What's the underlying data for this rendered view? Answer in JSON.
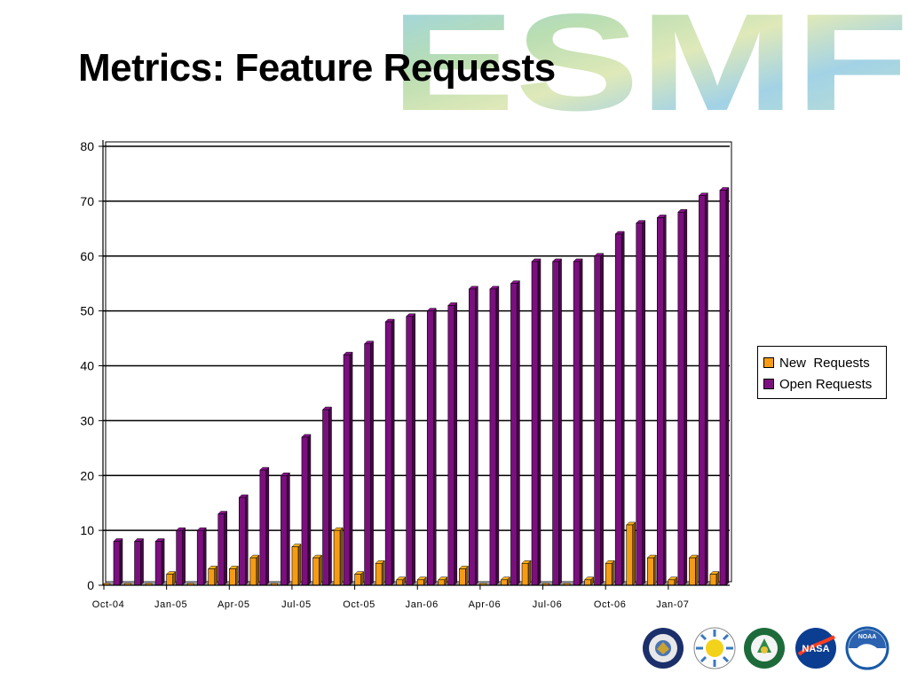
{
  "slide": {
    "title": "Metrics: Feature Requests",
    "logo_text": "ESMF"
  },
  "colors": {
    "new_requests": "#f59c14",
    "open_requests": "#7b0f7e",
    "gridline": "#000000",
    "floor": "#9a9a9a"
  },
  "chart_data": {
    "type": "bar",
    "title": "",
    "xlabel": "",
    "ylabel": "",
    "ylim": [
      0,
      80
    ],
    "yticks": [
      0,
      10,
      20,
      30,
      40,
      50,
      60,
      70,
      80
    ],
    "grid": true,
    "legend_position": "right",
    "tick_labels": [
      "Oct-04",
      "Jan-05",
      "Apr-05",
      "Jul-05",
      "Oct-05",
      "Jan-06",
      "Apr-06",
      "Jul-06",
      "Oct-06",
      "Jan-07"
    ],
    "categories": [
      "Oct-04",
      "Nov-04",
      "Dec-04",
      "Jan-05",
      "Feb-05",
      "Mar-05",
      "Apr-05",
      "May-05",
      "Jun-05",
      "Jul-05",
      "Aug-05",
      "Sep-05",
      "Oct-05",
      "Nov-05",
      "Dec-05",
      "Jan-06",
      "Feb-06",
      "Mar-06",
      "Apr-06",
      "May-06",
      "Jun-06",
      "Jul-06",
      "Aug-06",
      "Sep-06",
      "Oct-06",
      "Nov-06",
      "Dec-06",
      "Jan-07",
      "Feb-07",
      "Mar-07"
    ],
    "series": [
      {
        "name": "New  Requests",
        "values": [
          0,
          0,
          0,
          2,
          0,
          3,
          3,
          5,
          0,
          7,
          5,
          10,
          2,
          4,
          1,
          1,
          1,
          3,
          0,
          1,
          4,
          0,
          0,
          1,
          4,
          11,
          5,
          1,
          5,
          2
        ]
      },
      {
        "name": "Open Requests",
        "values": [
          8,
          8,
          8,
          10,
          10,
          13,
          16,
          21,
          20,
          27,
          32,
          42,
          44,
          48,
          49,
          50,
          51,
          54,
          54,
          55,
          59,
          59,
          59,
          60,
          64,
          66,
          67,
          68,
          71,
          72
        ]
      }
    ]
  },
  "agencies": [
    {
      "name": "Department of Defense",
      "icon": "dod-seal-icon"
    },
    {
      "name": "National Science Foundation",
      "icon": "nsf-seal-icon"
    },
    {
      "name": "Department of Energy",
      "icon": "doe-seal-icon"
    },
    {
      "name": "NASA",
      "label": "NASA",
      "icon": "nasa-meatball-icon"
    },
    {
      "name": "NOAA",
      "label": "NOAA",
      "icon": "noaa-logo-icon"
    }
  ]
}
